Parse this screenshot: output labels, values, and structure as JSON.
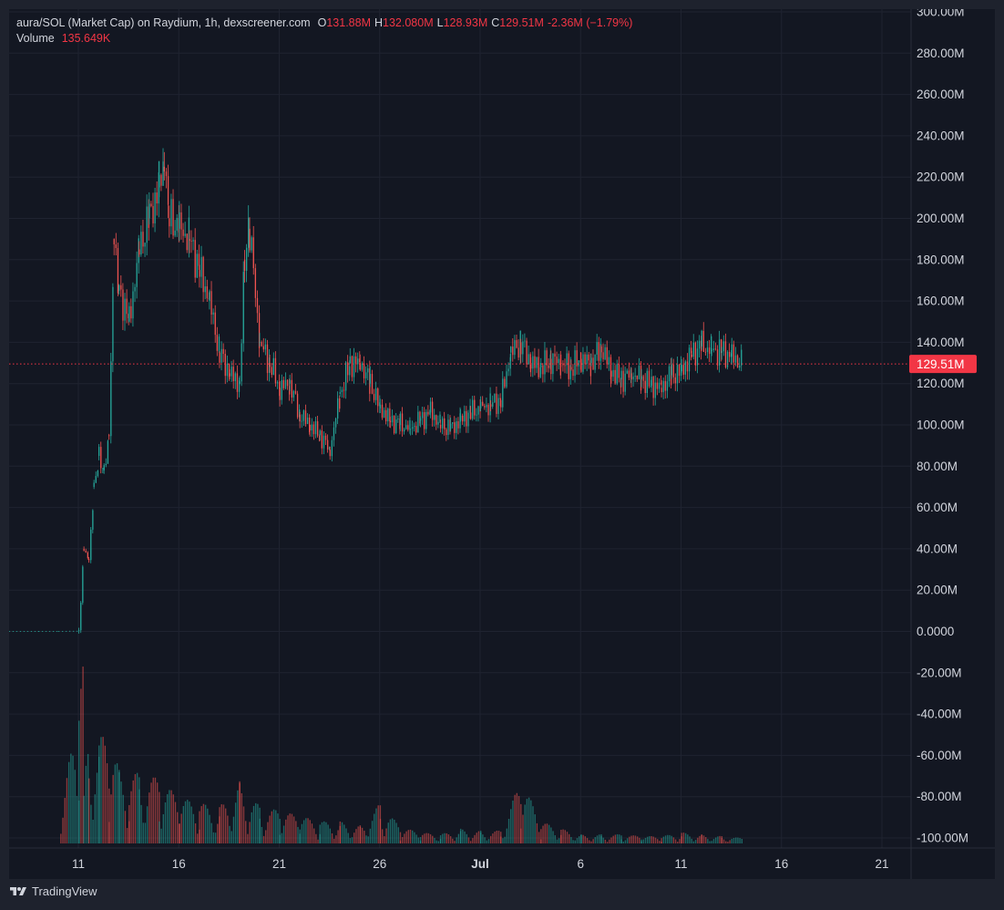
{
  "legend": {
    "title": "aura/SOL (Market Cap) on Raydium, 1h, dexscreener.com",
    "o_label": "O",
    "o_value": "131.88M",
    "h_label": "H",
    "h_value": "132.080M",
    "l_label": "L",
    "l_value": "128.93M",
    "c_label": "C",
    "c_value": "129.51M",
    "change": "-2.36M (−1.79%)",
    "volume_label": "Volume",
    "volume_value": "135.649K"
  },
  "price_label": "129.51M",
  "footer": {
    "brand": "TradingView"
  },
  "colors": {
    "up": "#26a69a",
    "down": "#ef5350",
    "last": "#f23645",
    "grid": "#1f2330",
    "text": "#d1d4dc"
  },
  "chart_data": {
    "type": "candlestick",
    "xlabel": "",
    "ylabel": "",
    "x_ticks": [
      "11",
      "16",
      "21",
      "26",
      "Jul",
      "6",
      "11",
      "16",
      "21"
    ],
    "x_tick_dates": [
      "2024-06-11",
      "2024-06-16",
      "2024-06-21",
      "2024-06-26",
      "2024-07-01",
      "2024-07-06",
      "2024-07-11",
      "2024-07-16",
      "2024-07-21"
    ],
    "y_ticks": [
      "300.00M",
      "280.00M",
      "260.00M",
      "240.00M",
      "220.00M",
      "200.00M",
      "180.00M",
      "160.00M",
      "140.00M",
      "120.00M",
      "100.00M",
      "80.00M",
      "60.00M",
      "40.00M",
      "20.00M",
      "0.0000",
      "-20.00M",
      "-40.00M",
      "-60.00M",
      "-80.00M",
      "-100.00M"
    ],
    "y_tick_values": [
      300,
      280,
      260,
      240,
      220,
      200,
      180,
      160,
      140,
      120,
      100,
      80,
      60,
      40,
      20,
      0,
      -20,
      -40,
      -60,
      -80,
      -100
    ],
    "ylim": [
      -100,
      300
    ],
    "y_unit": "M",
    "last_close": 129.51,
    "grid": true,
    "series": [
      {
        "name": "Market Cap",
        "x": [
          "2024-06-07",
          "2024-06-09",
          "2024-06-10",
          "2024-06-11",
          "2024-06-11 06:00",
          "2024-06-11 12:00",
          "2024-06-11 18:00",
          "2024-06-12",
          "2024-06-12 06:00",
          "2024-06-12 12:00",
          "2024-06-12 18:00",
          "2024-06-13",
          "2024-06-13 12:00",
          "2024-06-14",
          "2024-06-14 12:00",
          "2024-06-15",
          "2024-06-15 06:00",
          "2024-06-15 12:00",
          "2024-06-16",
          "2024-06-16 12:00",
          "2024-06-17",
          "2024-06-17 12:00",
          "2024-06-18",
          "2024-06-18 12:00",
          "2024-06-19",
          "2024-06-19 06:00",
          "2024-06-19 12:00",
          "2024-06-20",
          "2024-06-20 12:00",
          "2024-06-21",
          "2024-06-21 12:00",
          "2024-06-22",
          "2024-06-22 12:00",
          "2024-06-23",
          "2024-06-23 12:00",
          "2024-06-24",
          "2024-06-24 12:00",
          "2024-06-25",
          "2024-06-25 12:00",
          "2024-06-26",
          "2024-06-26 12:00",
          "2024-06-27",
          "2024-06-27 12:00",
          "2024-06-28",
          "2024-06-28 12:00",
          "2024-06-29",
          "2024-06-29 12:00",
          "2024-06-30",
          "2024-06-30 12:00",
          "2024-07-01",
          "2024-07-01 12:00",
          "2024-07-02",
          "2024-07-02 12:00",
          "2024-07-03",
          "2024-07-03 12:00",
          "2024-07-04",
          "2024-07-04 12:00",
          "2024-07-05",
          "2024-07-05 12:00",
          "2024-07-06",
          "2024-07-06 12:00",
          "2024-07-07",
          "2024-07-07 12:00",
          "2024-07-08",
          "2024-07-08 12:00",
          "2024-07-09",
          "2024-07-09 12:00",
          "2024-07-10",
          "2024-07-10 12:00",
          "2024-07-11",
          "2024-07-11 12:00",
          "2024-07-12",
          "2024-07-12 12:00",
          "2024-07-13",
          "2024-07-13 12:00",
          "2024-07-14"
        ],
        "y": [
          0.2,
          0.2,
          0.2,
          0.3,
          40,
          35,
          70,
          85,
          78,
          95,
          190,
          165,
          150,
          185,
          200,
          215,
          225,
          200,
          195,
          190,
          175,
          160,
          135,
          125,
          120,
          180,
          195,
          140,
          130,
          118,
          120,
          105,
          100,
          95,
          88,
          115,
          130,
          130,
          120,
          108,
          102,
          100,
          98,
          102,
          106,
          100,
          98,
          102,
          106,
          108,
          110,
          112,
          135,
          140,
          130,
          128,
          132,
          130,
          128,
          132,
          130,
          138,
          126,
          122,
          125,
          122,
          119,
          118,
          124,
          126,
          134,
          138,
          136,
          135,
          133,
          129.5
        ]
      },
      {
        "name": "Volume",
        "x": [
          "2024-06-07",
          "2024-06-10",
          "2024-06-11",
          "2024-06-11 06:00",
          "2024-06-11 12:00",
          "2024-06-12",
          "2024-06-12 12:00",
          "2024-06-13",
          "2024-06-13 12:00",
          "2024-06-14",
          "2024-06-15",
          "2024-06-16",
          "2024-06-17",
          "2024-06-18",
          "2024-06-19",
          "2024-06-20",
          "2024-06-21",
          "2024-06-22",
          "2024-06-23",
          "2024-06-24",
          "2024-06-25",
          "2024-06-26",
          "2024-06-27",
          "2024-06-28",
          "2024-06-29",
          "2024-06-30",
          "2024-07-01",
          "2024-07-02",
          "2024-07-03",
          "2024-07-04",
          "2024-07-05",
          "2024-07-06",
          "2024-07-07",
          "2024-07-08",
          "2024-07-09",
          "2024-07-10",
          "2024-07-11",
          "2024-07-12",
          "2024-07-13",
          "2024-07-14"
        ],
        "values": [
          0,
          0,
          0.9,
          1.0,
          0.6,
          0.55,
          0.7,
          0.4,
          0.35,
          0.4,
          0.35,
          0.25,
          0.22,
          0.2,
          0.35,
          0.2,
          0.18,
          0.15,
          0.12,
          0.12,
          0.1,
          0.22,
          0.09,
          0.06,
          0.05,
          0.08,
          0.07,
          0.07,
          0.35,
          0.12,
          0.08,
          0.05,
          0.05,
          0.05,
          0.04,
          0.04,
          0.06,
          0.05,
          0.04,
          0.03
        ]
      }
    ]
  }
}
